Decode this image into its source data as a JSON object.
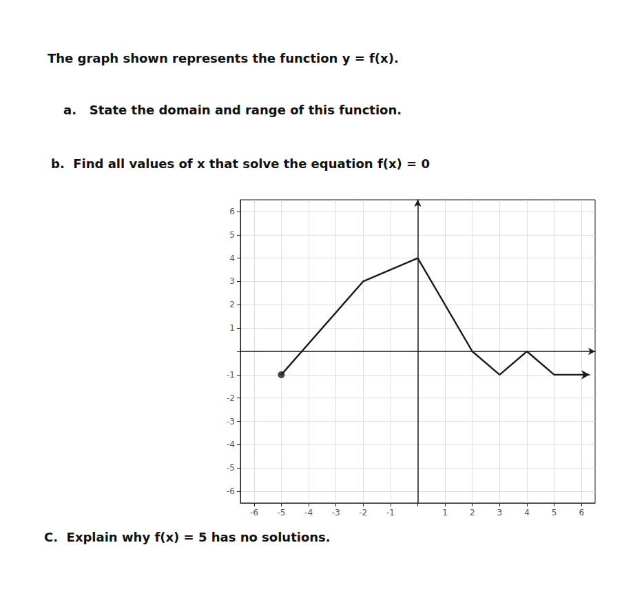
{
  "chart_data": {
    "type": "line",
    "title": "The graph shown represents the function y = f(x).",
    "annotations": [
      "a.   State the domain and range of this function.",
      "b.  Find all values of x that solve the equation f(x) = 0",
      "C.  Explain why f(x) = 5 has no solutions."
    ],
    "series": [
      {
        "type": "line",
        "color": "#1a1a1a",
        "x": [
          -5,
          -2,
          0,
          2,
          3,
          4,
          5,
          6.3
        ],
        "values": [
          -1,
          3,
          4,
          0,
          -1,
          0,
          -1,
          -1
        ]
      },
      {
        "type": "scatter",
        "color": "#1a1a1a",
        "marker": "circle",
        "x": [
          -5
        ],
        "values": [
          -1
        ]
      }
    ],
    "xlim": [
      -6.5,
      6.5
    ],
    "ylim": [
      -6.5,
      6.5
    ],
    "xticks": [
      -6,
      -5,
      -4,
      -3,
      -2,
      -1,
      {
        "value": 0,
        "label": null
      },
      1,
      2,
      3,
      4,
      5,
      6
    ],
    "yticks": [
      -6,
      -5,
      -4,
      -3,
      -2,
      -1,
      {
        "value": 0,
        "label": null
      },
      1,
      2,
      3,
      4,
      5,
      6
    ],
    "grid": true
  }
}
